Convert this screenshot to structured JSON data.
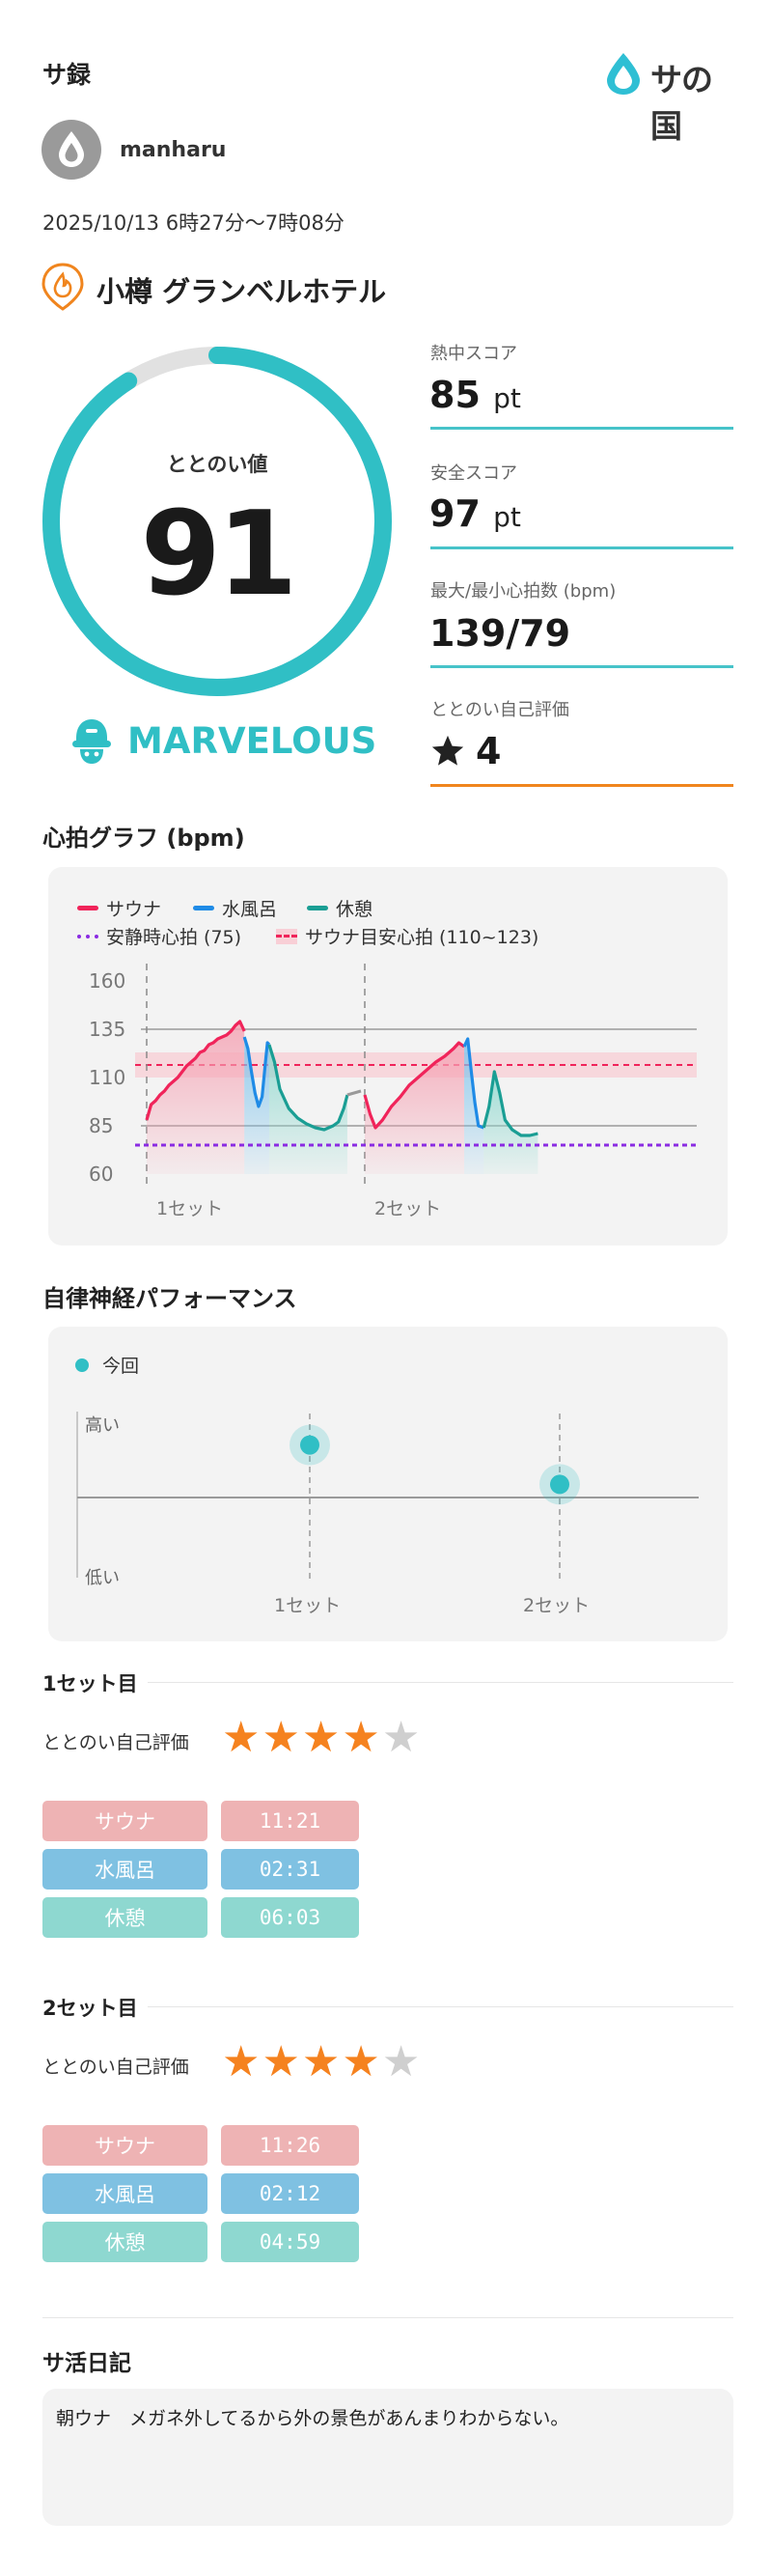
{
  "header": {
    "title": "サ録",
    "brand": "サの国"
  },
  "user": {
    "name": "manharu"
  },
  "session": {
    "datetime": "2025/10/13 6時27分〜7時08分",
    "facility": "小樽 グランベルホテル"
  },
  "score": {
    "label": "ととのい値",
    "value": "91",
    "fraction": 0.91,
    "rank": "MARVELOUS",
    "accent": "#30bfc5"
  },
  "stats": [
    {
      "label": "熱中スコア",
      "value": "85",
      "unit": "pt"
    },
    {
      "label": "安全スコア",
      "value": "97",
      "unit": "pt"
    },
    {
      "label": "最大/最小心拍数 (bpm)",
      "value": "139/79",
      "unit": ""
    },
    {
      "label": "ととのい自己評価",
      "value": "4",
      "unit": "",
      "icon": "star-icon"
    }
  ],
  "heart_chart": {
    "title": "心拍グラフ (bpm)",
    "legend": {
      "sauna": "サウナ",
      "water": "水風呂",
      "rest": "休憩",
      "resting_hr": "安静時心拍 (75)",
      "target": "サウナ目安心拍 (110~123)"
    },
    "y_ticks": [
      "160",
      "135",
      "110",
      "85",
      "60"
    ],
    "set_labels": [
      "1セット",
      "2セット"
    ]
  },
  "chart_data": {
    "type": "line",
    "ylim": [
      60,
      160
    ],
    "resting_hr": 75,
    "target_band": [
      110,
      123
    ],
    "sets": [
      {
        "sauna": [
          [
            0,
            88
          ],
          [
            0.5,
            96
          ],
          [
            1,
            98
          ],
          [
            1.5,
            101
          ],
          [
            2,
            103
          ],
          [
            2.5,
            106
          ],
          [
            3,
            108
          ],
          [
            3.5,
            110
          ],
          [
            4,
            113
          ],
          [
            4.5,
            116
          ],
          [
            5,
            118
          ],
          [
            5.5,
            120
          ],
          [
            6,
            123
          ],
          [
            6.5,
            124
          ],
          [
            7,
            127
          ],
          [
            7.5,
            128
          ],
          [
            8,
            130
          ],
          [
            8.5,
            131
          ],
          [
            9,
            132
          ],
          [
            9.5,
            134
          ],
          [
            10,
            137
          ],
          [
            10.5,
            139
          ],
          [
            11,
            134
          ]
        ],
        "water": [
          [
            11,
            131
          ],
          [
            11.4,
            125
          ],
          [
            11.8,
            113
          ],
          [
            12.2,
            102
          ],
          [
            12.6,
            95
          ],
          [
            13,
            100
          ],
          [
            13.4,
            119
          ],
          [
            13.6,
            128
          ],
          [
            13.8,
            127
          ]
        ],
        "rest": [
          [
            13.8,
            127
          ],
          [
            14.4,
            118
          ],
          [
            15,
            104
          ],
          [
            16,
            94
          ],
          [
            17,
            89
          ],
          [
            18,
            86
          ],
          [
            19,
            84
          ],
          [
            20,
            83
          ],
          [
            21,
            85
          ],
          [
            21.6,
            87
          ],
          [
            22.2,
            94
          ],
          [
            22.6,
            101
          ]
        ]
      },
      {
        "sauna": [
          [
            0,
            101
          ],
          [
            0.6,
            91
          ],
          [
            1.2,
            84
          ],
          [
            2,
            88
          ],
          [
            3,
            95
          ],
          [
            4,
            100
          ],
          [
            5,
            106
          ],
          [
            6,
            110
          ],
          [
            7,
            114
          ],
          [
            8,
            118
          ],
          [
            9,
            121
          ],
          [
            10,
            125
          ],
          [
            10.6,
            128
          ],
          [
            11.2,
            126
          ]
        ],
        "water": [
          [
            11.2,
            126
          ],
          [
            11.6,
            130
          ],
          [
            12,
            113
          ],
          [
            12.4,
            97
          ],
          [
            12.8,
            85
          ],
          [
            13.4,
            84
          ]
        ],
        "rest": [
          [
            13.4,
            84
          ],
          [
            14,
            95
          ],
          [
            14.6,
            113
          ],
          [
            15.2,
            102
          ],
          [
            15.8,
            88
          ],
          [
            16.6,
            83
          ],
          [
            17.6,
            80
          ],
          [
            18.6,
            80
          ],
          [
            19.5,
            81
          ]
        ]
      }
    ]
  },
  "autonomic": {
    "title": "自律神経パフォーマンス",
    "legend": "今回",
    "high": "高い",
    "low": "低い",
    "set_labels": [
      "1セット",
      "2セット"
    ],
    "points": [
      0.82,
      0.58
    ]
  },
  "sets": [
    {
      "title": "1セット目",
      "eval_label": "ととのい自己評価",
      "rating": 4,
      "rows": [
        {
          "label": "サウナ",
          "time": "11:21"
        },
        {
          "label": "水風呂",
          "time": "02:31"
        },
        {
          "label": "休憩",
          "time": "06:03"
        }
      ]
    },
    {
      "title": "2セット目",
      "eval_label": "ととのい自己評価",
      "rating": 4,
      "rows": [
        {
          "label": "サウナ",
          "time": "11:26"
        },
        {
          "label": "水風呂",
          "time": "02:12"
        },
        {
          "label": "休憩",
          "time": "04:59"
        }
      ]
    }
  ],
  "diary": {
    "title": "サ活日記",
    "text": "朝ウナ　メガネ外してるから外の景色があんまりわからない。"
  },
  "colors": {
    "sauna": "#f0245a",
    "water": "#1f8be6",
    "rest": "#1a9e94",
    "resting": "#8a2be2",
    "target": "#f0245a",
    "teal": "#30bfc5",
    "orange": "#f0851e"
  }
}
